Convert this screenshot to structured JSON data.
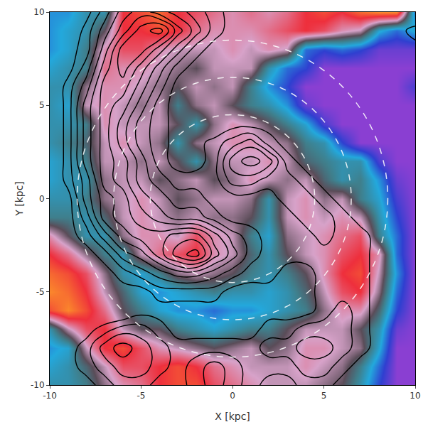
{
  "chart_data": {
    "type": "heatmap",
    "x_label": "X [kpc]",
    "y_label": "Y [kpc]",
    "xlim": [
      -10,
      10
    ],
    "ylim": [
      -10,
      10
    ],
    "xticks": [
      -10,
      -5,
      0,
      5,
      10
    ],
    "yticks": [
      -10,
      -5,
      0,
      5,
      10
    ],
    "x": [
      -10,
      -9,
      -8,
      -7,
      -6,
      -5,
      -4,
      -3,
      -2,
      -1,
      0,
      1,
      2,
      3,
      4,
      5,
      6,
      7,
      8,
      9,
      10
    ],
    "y": [
      10,
      9,
      8,
      7,
      6,
      5,
      4,
      3,
      2,
      1,
      0,
      -1,
      -2,
      -3,
      -4,
      -5,
      -6,
      -7,
      -8,
      -9,
      -10
    ],
    "values": [
      [
        -0.5,
        -0.5,
        -0.3,
        -0.3,
        0.6,
        0.7,
        0.8,
        0.6,
        0.5,
        0.4,
        0.3,
        0.4,
        0.3,
        0.4,
        0.6,
        0.7,
        0.6,
        0.8,
        0.9,
        0.9,
        -0.6
      ],
      [
        -0.5,
        -0.4,
        -0.3,
        0,
        0.6,
        0.6,
        0.7,
        0.6,
        0.4,
        0.3,
        0.3,
        0.3,
        0.4,
        0.5,
        0.6,
        0.5,
        0.3,
        0.2,
        -0.4,
        -0.6,
        -0.4
      ],
      [
        -0.5,
        -0.4,
        -0.2,
        0.3,
        0.5,
        0.5,
        0.3,
        0.2,
        0.2,
        0.2,
        0.3,
        0.2,
        0.3,
        0.2,
        -0.6,
        -0.7,
        -0.6,
        -0.7,
        -0.9,
        -0.9,
        -0.9
      ],
      [
        -0.4,
        -0.3,
        -0.2,
        0.4,
        0.3,
        0.3,
        0.2,
        0.1,
        0,
        0.2,
        0.2,
        0.2,
        -0.3,
        -0.6,
        -0.7,
        -1,
        -1,
        -1,
        -1,
        -1,
        -1
      ],
      [
        -0.3,
        -0.3,
        0.1,
        0.3,
        0.3,
        0.2,
        0.1,
        0,
        0.2,
        0.1,
        0.2,
        -0.2,
        -0.5,
        -0.7,
        -1,
        -1,
        -1,
        -1,
        -1,
        -1,
        -0.8
      ],
      [
        -0.3,
        -0.4,
        0.2,
        0.3,
        0.2,
        0.1,
        0.2,
        -0.2,
        0.1,
        0.2,
        0,
        -0.2,
        -0.3,
        -0.5,
        -0.9,
        -1,
        -1,
        -1,
        -1,
        -1,
        -1
      ],
      [
        -0.3,
        -0.3,
        -0.2,
        0.3,
        0.2,
        0.2,
        0.2,
        0,
        -0.3,
        0.1,
        0.3,
        0.2,
        0,
        -0.2,
        -0.4,
        -0.8,
        -1,
        -1,
        -1,
        -1,
        -1
      ],
      [
        -0.3,
        -0.2,
        -0.1,
        0.2,
        0.3,
        0.2,
        0.1,
        -0.3,
        0.1,
        0.2,
        0.3,
        0.3,
        0.2,
        0.1,
        -0.2,
        -0.3,
        -0.7,
        -1,
        -1,
        -1,
        -1
      ],
      [
        -0.4,
        -0.3,
        -0.2,
        0.2,
        0.2,
        0.1,
        0.2,
        0,
        -0.3,
        0.1,
        0.2,
        0.2,
        0.3,
        0.2,
        -0.1,
        -0.2,
        -0.3,
        -0.3,
        -0.8,
        -1,
        -1
      ],
      [
        -0.4,
        -0.3,
        -0.3,
        0.1,
        0.2,
        0.2,
        0,
        0.1,
        0.2,
        0,
        0.1,
        0.3,
        0.2,
        0.1,
        0.2,
        -0.1,
        -0.3,
        -0.2,
        -0.5,
        -0.9,
        -1
      ],
      [
        -0.3,
        -0.3,
        -0.2,
        0.1,
        0.2,
        0.3,
        0.2,
        0,
        0.1,
        0.2,
        0.2,
        0.1,
        -0.3,
        0.2,
        0.3,
        0.1,
        0.2,
        -0.2,
        -0.4,
        -0.8,
        -1
      ],
      [
        -0.2,
        -0.2,
        -0.3,
        -0.1,
        0.2,
        0.3,
        0.2,
        0.1,
        0.2,
        0.1,
        0.1,
        0,
        -0.3,
        0.2,
        0.3,
        0.2,
        0.3,
        0.2,
        -0.3,
        -0.7,
        -1
      ],
      [
        0.3,
        0,
        -0.3,
        -0.3,
        0.1,
        0.3,
        0.3,
        0.2,
        0.5,
        0.3,
        0.2,
        -0.2,
        -0.4,
        0.1,
        0.2,
        0.3,
        0.4,
        0.5,
        -0.2,
        -0.6,
        -1
      ],
      [
        0.6,
        0.4,
        0.1,
        -0.2,
        -0.3,
        0.2,
        0.4,
        0.5,
        0.6,
        0.3,
        0.2,
        -0.1,
        -0.3,
        0,
        0.2,
        0.3,
        0.5,
        0.6,
        0.3,
        -0.6,
        -1
      ],
      [
        0.8,
        0.7,
        0.5,
        0.1,
        -0.3,
        -0.4,
        -0.2,
        0.1,
        0.2,
        0.1,
        0,
        -0.2,
        -0.3,
        -0.2,
        0,
        0.3,
        0.6,
        0.7,
        0.2,
        -0.5,
        -1
      ],
      [
        0.9,
        0.8,
        0.6,
        0.2,
        -0.1,
        -0.4,
        -0.5,
        -0.4,
        -0.3,
        -0.2,
        -0.3,
        -0.3,
        -0.4,
        -0.3,
        -0.1,
        0.2,
        0.5,
        0.6,
        0.1,
        -0.6,
        -1
      ],
      [
        0.7,
        0.9,
        0.7,
        0.4,
        0,
        -0.2,
        -0.4,
        -0.5,
        -0.5,
        -0.6,
        -0.5,
        -0.5,
        -0.4,
        -0.3,
        -0.2,
        0.1,
        0.3,
        0.3,
        -0.1,
        -0.7,
        -1
      ],
      [
        -0.3,
        0.2,
        0.5,
        0.6,
        0.2,
        0,
        0,
        -0.2,
        -0.3,
        -0.4,
        -0.3,
        -0.2,
        -0.2,
        0,
        0.2,
        0.2,
        0.2,
        0,
        -0.3,
        -0.9,
        -1
      ],
      [
        -0.5,
        -0.4,
        0.2,
        0.6,
        0.7,
        0.5,
        0.3,
        0.2,
        0.1,
        0,
        0.1,
        0.2,
        0,
        0.1,
        0.3,
        0.3,
        0.2,
        0.1,
        -0.4,
        -1,
        -1
      ],
      [
        -0.4,
        -0.3,
        -0.1,
        0.2,
        0.5,
        0.5,
        0.6,
        0.7,
        0.6,
        0.4,
        0.3,
        0.2,
        0.2,
        0.2,
        0.3,
        0.2,
        0.1,
        -0.2,
        -0.6,
        -1,
        -1
      ],
      [
        -0.3,
        -0.3,
        -0.2,
        0.1,
        0.3,
        0.4,
        0.6,
        0.7,
        0.7,
        0.5,
        0.4,
        0.3,
        0.2,
        0.2,
        0.2,
        0.1,
        0,
        -0.3,
        -0.7,
        -1,
        -1
      ]
    ],
    "color_range": [
      -1,
      1
    ],
    "contour_values": [
      [
        0,
        0,
        0.1,
        0.3,
        0.5,
        0.6,
        0.5,
        0.4,
        0.3,
        0.2,
        0.1,
        0,
        0,
        0,
        0,
        0,
        0,
        0,
        0,
        0,
        0
      ],
      [
        0,
        0,
        0.2,
        0.4,
        0.6,
        0.8,
        0.9,
        0.6,
        0.4,
        0.2,
        0.1,
        0,
        0,
        0,
        0,
        0,
        0,
        0,
        0,
        0.1,
        0.2
      ],
      [
        0,
        0.1,
        0.2,
        0.5,
        0.8,
        0.8,
        0.6,
        0.4,
        0.2,
        0.1,
        0,
        0,
        0,
        0,
        0,
        0,
        0,
        0,
        0,
        0.1,
        0.1
      ],
      [
        0,
        0.1,
        0.3,
        0.6,
        0.8,
        0.6,
        0.4,
        0.2,
        0.1,
        0,
        0,
        0,
        0,
        0,
        0,
        0,
        0,
        0,
        0,
        0,
        0
      ],
      [
        0,
        0.2,
        0.4,
        0.7,
        0.7,
        0.5,
        0.3,
        0.1,
        0,
        0,
        0,
        0,
        0,
        0,
        0,
        0,
        0,
        0,
        0,
        0,
        0
      ],
      [
        0,
        0.2,
        0.5,
        0.7,
        0.6,
        0.4,
        0.2,
        0.1,
        0,
        0,
        0,
        0,
        0,
        0,
        0,
        0,
        0,
        0,
        0,
        0,
        0
      ],
      [
        0,
        0.2,
        0.5,
        0.7,
        0.5,
        0.3,
        0.2,
        0.1,
        0,
        0,
        0.1,
        0.1,
        0.1,
        0,
        0,
        0,
        0,
        0,
        0,
        0,
        0
      ],
      [
        0,
        0.2,
        0.5,
        0.7,
        0.5,
        0.3,
        0.2,
        0.1,
        0.1,
        0.2,
        0.3,
        0.4,
        0.2,
        0.1,
        0,
        0,
        0,
        0,
        0,
        0,
        0
      ],
      [
        0,
        0.2,
        0.5,
        0.7,
        0.6,
        0.4,
        0.2,
        0.1,
        0.1,
        0.2,
        0.5,
        0.6,
        0.5,
        0.2,
        0.1,
        0,
        0,
        0,
        0,
        0,
        0
      ],
      [
        0,
        0.2,
        0.4,
        0.7,
        0.6,
        0.4,
        0.3,
        0.2,
        0.2,
        0.2,
        0.4,
        0.4,
        0.3,
        0.3,
        0.2,
        0.1,
        0,
        0,
        0,
        0,
        0
      ],
      [
        0,
        0.1,
        0.4,
        0.6,
        0.7,
        0.5,
        0.4,
        0.3,
        0.3,
        0.2,
        0.2,
        0.2,
        0.2,
        0.3,
        0.3,
        0.2,
        0.1,
        0.1,
        0,
        0,
        0
      ],
      [
        0,
        0.1,
        0.3,
        0.6,
        0.7,
        0.6,
        0.5,
        0.4,
        0.4,
        0.3,
        0.2,
        0.2,
        0.2,
        0.2,
        0.3,
        0.3,
        0.2,
        0.1,
        0.1,
        0,
        0
      ],
      [
        0,
        0.1,
        0.2,
        0.4,
        0.6,
        0.7,
        0.7,
        0.8,
        0.8,
        0.6,
        0.4,
        0.3,
        0.2,
        0.2,
        0.2,
        0.3,
        0.2,
        0.2,
        0.1,
        0,
        0
      ],
      [
        0,
        0,
        0.1,
        0.2,
        0.4,
        0.5,
        0.7,
        0.9,
        1.0,
        0.7,
        0.5,
        0.3,
        0.2,
        0.2,
        0.2,
        0.2,
        0.2,
        0.2,
        0.1,
        0,
        0
      ],
      [
        0,
        0,
        0,
        0.1,
        0.2,
        0.3,
        0.4,
        0.5,
        0.5,
        0.4,
        0.3,
        0.2,
        0.2,
        0.1,
        0.1,
        0.2,
        0.2,
        0.2,
        0.1,
        0,
        0
      ],
      [
        0,
        0,
        0,
        0,
        0.1,
        0.1,
        0.2,
        0.2,
        0.2,
        0.2,
        0.1,
        0.1,
        0.1,
        0.1,
        0.1,
        0.2,
        0.2,
        0.2,
        0.1,
        0,
        0
      ],
      [
        0,
        0,
        0,
        0,
        0,
        0.1,
        0.1,
        0.1,
        0.1,
        0.1,
        0.1,
        0.1,
        0.1,
        0.1,
        0.1,
        0.2,
        0.3,
        0.2,
        0.1,
        0,
        0
      ],
      [
        0,
        0,
        0.1,
        0.2,
        0.3,
        0.3,
        0.2,
        0.1,
        0.1,
        0.1,
        0.1,
        0.1,
        0.2,
        0.2,
        0.3,
        0.3,
        0.3,
        0.2,
        0.1,
        0,
        0
      ],
      [
        0,
        0.1,
        0.2,
        0.4,
        0.5,
        0.4,
        0.3,
        0.2,
        0.2,
        0.2,
        0.2,
        0.2,
        0.3,
        0.3,
        0.4,
        0.4,
        0.3,
        0.2,
        0.1,
        0,
        0
      ],
      [
        0,
        0.1,
        0.2,
        0.3,
        0.4,
        0.4,
        0.3,
        0.2,
        0.3,
        0.4,
        0.3,
        0.2,
        0.2,
        0.2,
        0.3,
        0.3,
        0.2,
        0.1,
        0,
        0,
        0
      ],
      [
        0,
        0,
        0.1,
        0.2,
        0.3,
        0.3,
        0.2,
        0.2,
        0.3,
        0.4,
        0.3,
        0.2,
        0.1,
        0.1,
        0.2,
        0.2,
        0.1,
        0,
        0,
        0,
        0
      ]
    ],
    "contour_levels": [
      0.15,
      0.25,
      0.35,
      0.45,
      0.55,
      0.65,
      0.75,
      0.85,
      0.95
    ],
    "circles": [
      4.5,
      6.5,
      8.5
    ]
  }
}
